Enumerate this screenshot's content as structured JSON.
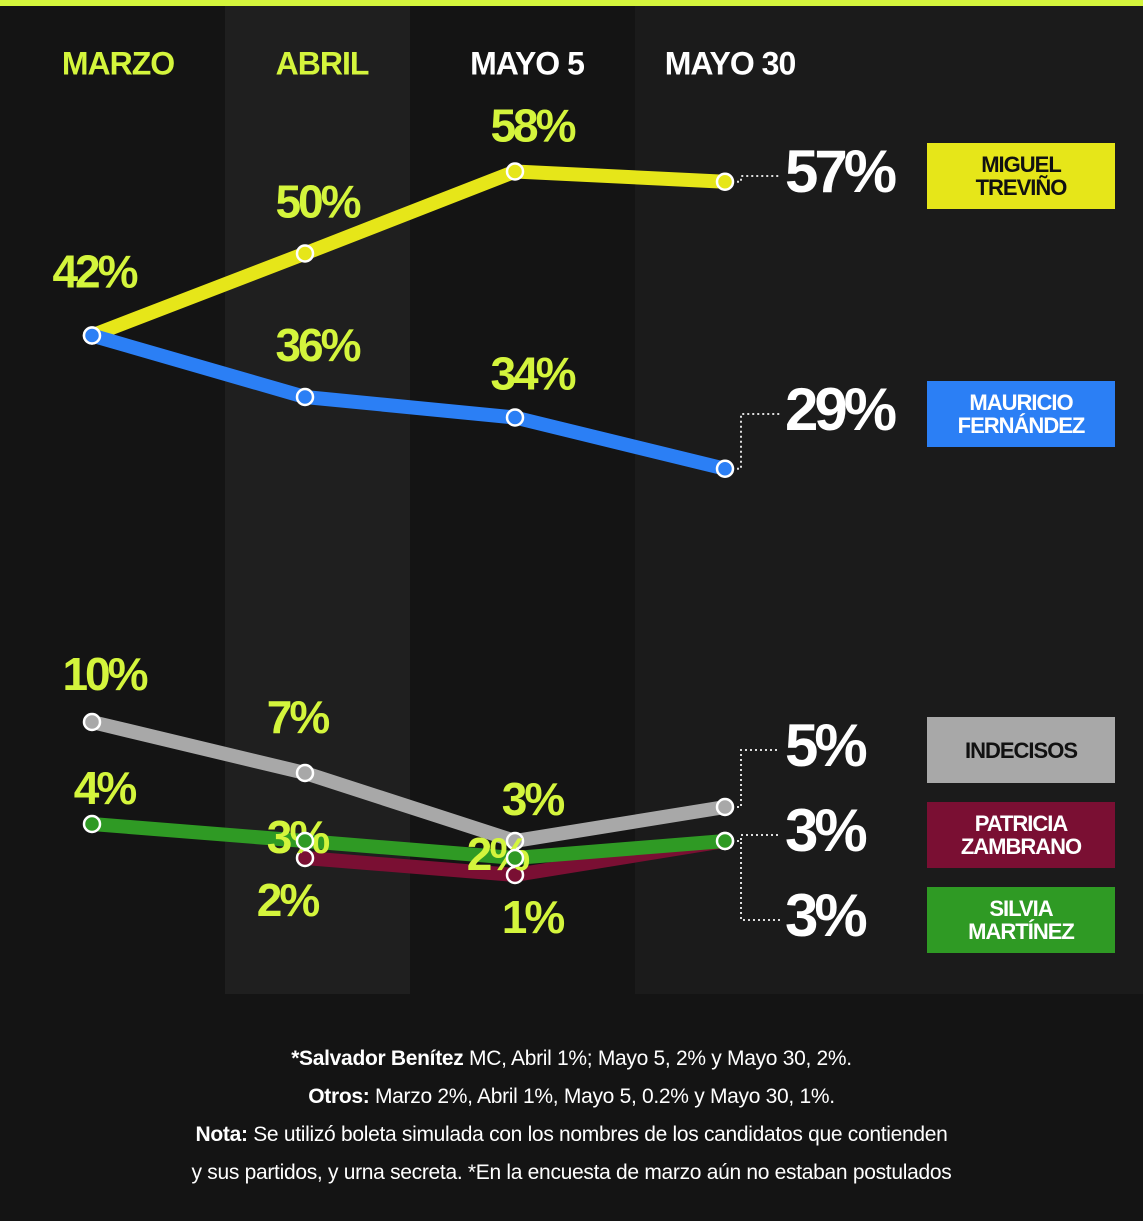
{
  "chart_data": {
    "type": "line",
    "categories": [
      "MARZO",
      "ABRIL",
      "MAYO 5",
      "MAYO 30"
    ],
    "panels": [
      {
        "ylim": [
          24,
          64
        ],
        "series": [
          {
            "name": "MIGUEL TREVIÑO",
            "color": "#e6e619",
            "values": [
              42,
              50,
              58,
              57
            ],
            "value_labels": [
              "42%",
              "50%",
              "58%",
              "57%"
            ]
          },
          {
            "name": "MAURICIO FERNÁNDEZ",
            "color": "#2b7ff5",
            "values": [
              42,
              36,
              34,
              29
            ],
            "value_labels": [
              null,
              "36%",
              "34%",
              "29%"
            ]
          }
        ]
      },
      {
        "ylim": [
          -4,
          14
        ],
        "series": [
          {
            "name": "INDECISOS",
            "color": "#a8a8a8",
            "values": [
              10,
              7,
              3,
              5
            ],
            "value_labels": [
              "10%",
              "7%",
              "3%",
              "5%"
            ]
          },
          {
            "name": "PATRICIA ZAMBRANO",
            "color": "#7a0f33",
            "values": [
              null,
              2,
              1,
              3
            ],
            "value_labels": [
              null,
              "2%",
              "1%",
              "3%"
            ]
          },
          {
            "name": "SILVIA MARTÍNEZ",
            "color": "#2f9a24",
            "values": [
              4,
              3,
              2,
              3
            ],
            "value_labels": [
              "4%",
              "3%",
              "2%",
              "3%"
            ]
          }
        ]
      }
    ],
    "notes": [
      {
        "bold": "*Salvador Benítez",
        "text": " MC, Abril 1%; Mayo 5, 2% y Mayo 30, 2%."
      },
      {
        "bold": "Otros:",
        "text": " Marzo 2%, Abril 1%, Mayo 5, 0.2% y Mayo 30, 1%."
      },
      {
        "bold": "Nota:",
        "text": " Se utilizó boleta simulada con los nombres de los candidatos que contienden"
      },
      {
        "text": "y sus partidos, y urna secreta. *En la encuesta de marzo aún no estaban postulados"
      }
    ]
  }
}
